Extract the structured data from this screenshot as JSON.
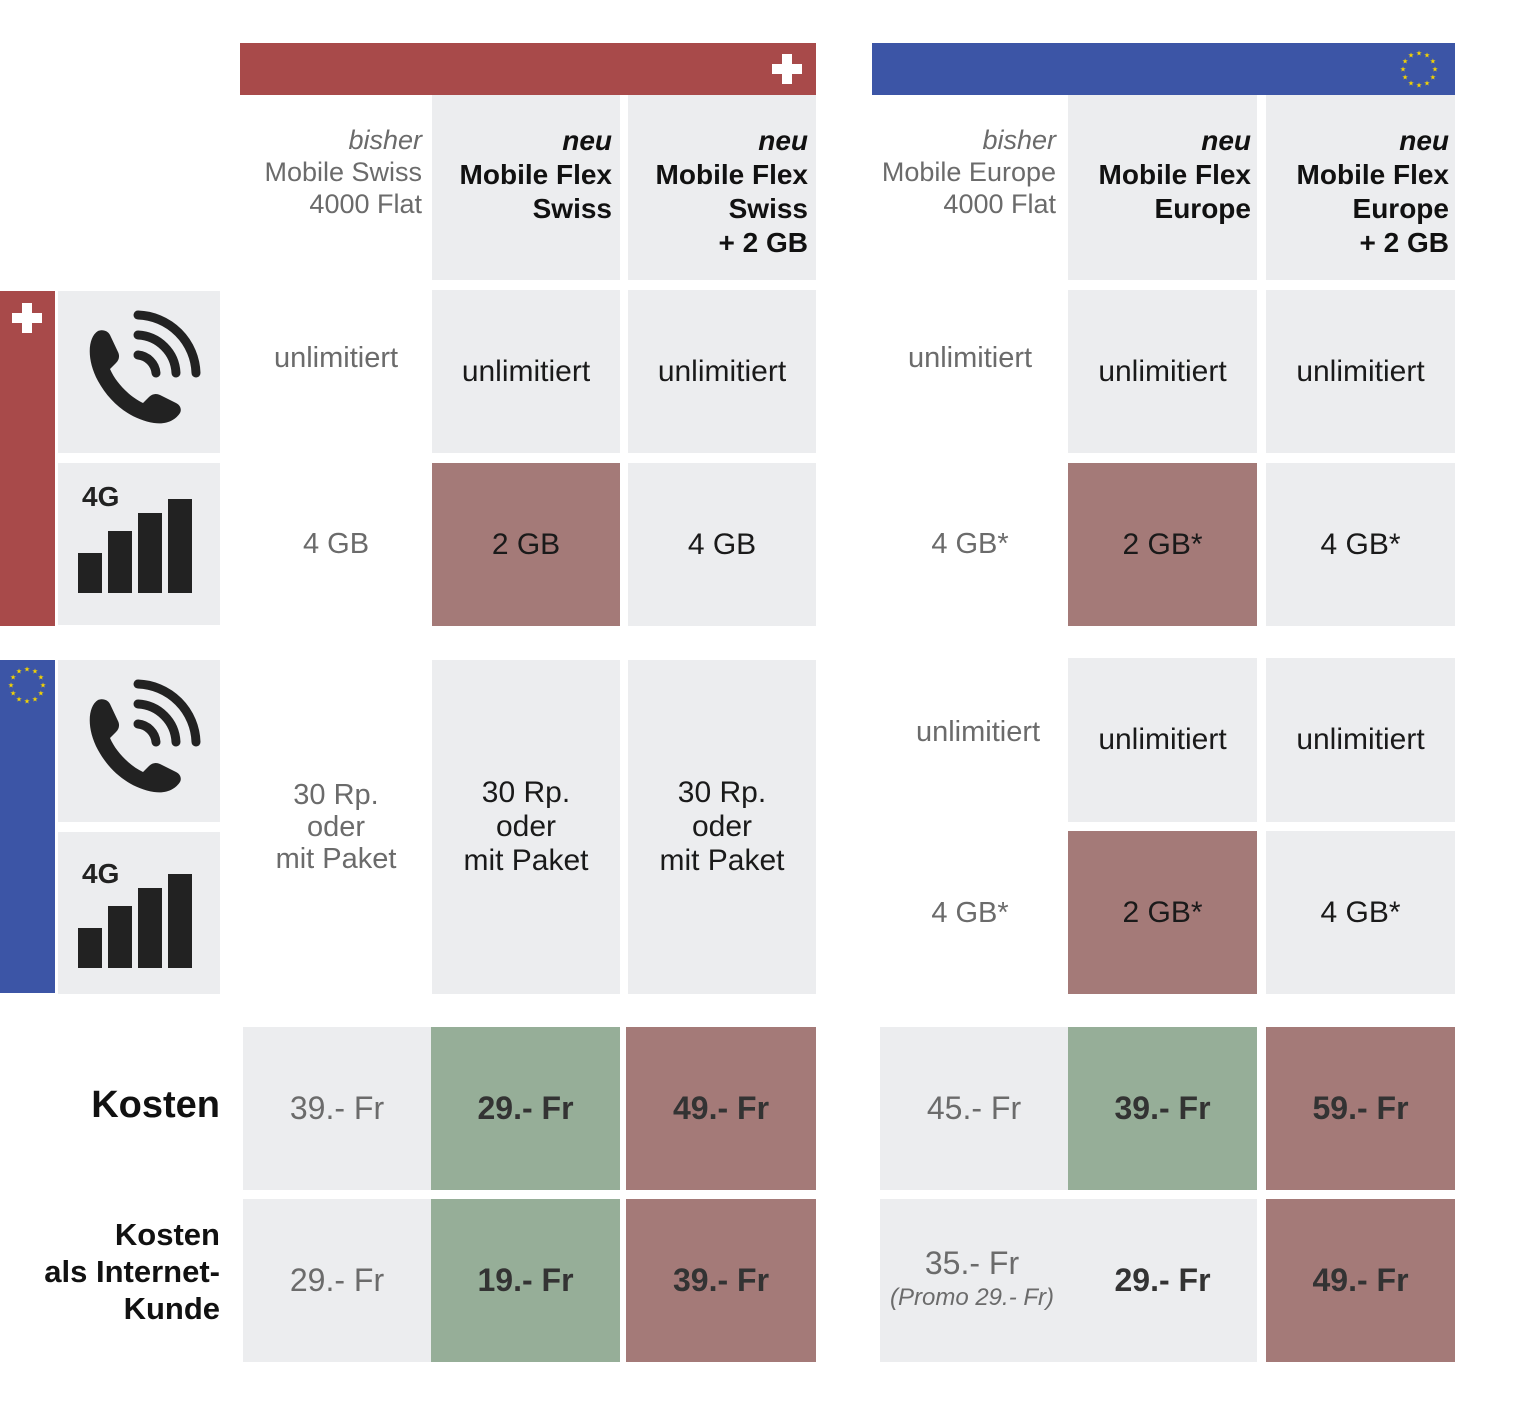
{
  "colors": {
    "swiss_red": "#a84a4a",
    "eu_blue": "#3c55a6",
    "cell_gray": "#ecedef",
    "highlight_red": "#a47a78",
    "highlight_green": "#96ae98",
    "eu_stars": "#f5d400"
  },
  "swiss": {
    "headers": [
      {
        "tag": "bisher",
        "name_lines": [
          "Mobile Swiss",
          "4000 Flat"
        ]
      },
      {
        "tag": "neu",
        "name_lines": [
          "Mobile Flex",
          "Swiss"
        ]
      },
      {
        "tag": "neu",
        "name_lines": [
          "Mobile Flex",
          "Swiss",
          "+ 2 GB"
        ]
      }
    ],
    "ch_calls": [
      "unlimitiert",
      "unlimitiert",
      "unlimitiert"
    ],
    "ch_data": [
      "4 GB",
      "2 GB",
      "4 GB"
    ],
    "eu_roaming": [
      [
        "30 Rp.",
        "oder",
        "mit Paket"
      ],
      [
        "30 Rp.",
        "oder",
        "mit Paket"
      ],
      [
        "30 Rp.",
        "oder",
        "mit Paket"
      ]
    ],
    "kosten": [
      "39.- Fr",
      "29.- Fr",
      "49.- Fr"
    ],
    "kosten_internet": [
      "29.- Fr",
      "19.- Fr",
      "39.- Fr"
    ]
  },
  "europe": {
    "headers": [
      {
        "tag": "bisher",
        "name_lines": [
          "Mobile Europe",
          "4000 Flat"
        ]
      },
      {
        "tag": "neu",
        "name_lines": [
          "Mobile Flex",
          "Europe"
        ]
      },
      {
        "tag": "neu",
        "name_lines": [
          "Mobile Flex",
          "Europe",
          "+ 2 GB"
        ]
      }
    ],
    "ch_calls": [
      "unlimitiert",
      "unlimitiert",
      "unlimitiert"
    ],
    "ch_data": [
      "4 GB*",
      "2 GB*",
      "4 GB*"
    ],
    "eu_calls": [
      "unlimitiert",
      "unlimitiert",
      "unlimitiert"
    ],
    "eu_data": [
      "4 GB*",
      "2 GB*",
      "4 GB*"
    ],
    "kosten": [
      "45.- Fr",
      "39.- Fr",
      "59.- Fr"
    ],
    "kosten_internet": [
      "35.- Fr",
      "29.- Fr",
      "49.- Fr"
    ],
    "promo_note": "(Promo 29.- Fr)"
  },
  "row_labels": {
    "network_label": "4G",
    "kosten": "Kosten",
    "kosten_internet_lines": [
      "Kosten",
      "als Internet-",
      "Kunde"
    ]
  },
  "icons": {
    "swiss_flag": "swiss-cross-icon",
    "eu_flag": "eu-stars-icon",
    "phone": "phone-icon",
    "signal": "signal-bars-icon"
  }
}
